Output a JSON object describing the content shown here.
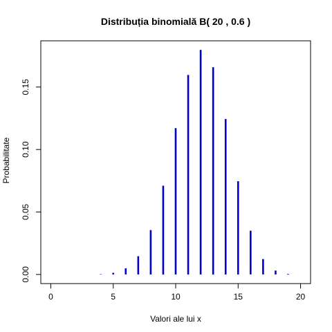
{
  "chart_data": {
    "type": "bar",
    "title": "Distribuția binomială B( 20 , 0.6 )",
    "xlabel": "Valori ale lui x",
    "ylabel": "Probabilitate",
    "xlim": [
      -0.8,
      20.8
    ],
    "ylim": [
      -0.0073,
      0.187
    ],
    "x_ticks": [
      0,
      5,
      10,
      15,
      20
    ],
    "x_tick_labels": [
      "0",
      "5",
      "10",
      "15",
      "20"
    ],
    "y_ticks": [
      0.0,
      0.05,
      0.1,
      0.15
    ],
    "y_tick_labels": [
      "0.00",
      "0.05",
      "0.10",
      "0.15"
    ],
    "grid": false,
    "legend": "none",
    "bar_color": "#0000CD",
    "x": [
      0,
      1,
      2,
      3,
      4,
      5,
      6,
      7,
      8,
      9,
      10,
      11,
      12,
      13,
      14,
      15,
      16,
      17,
      18,
      19,
      20
    ],
    "values": [
      0.0,
      0.0,
      0.0,
      0.0,
      0.0003,
      0.0013,
      0.0049,
      0.0146,
      0.0355,
      0.071,
      0.1171,
      0.1597,
      0.1797,
      0.1659,
      0.1244,
      0.0746,
      0.035,
      0.0123,
      0.0031,
      0.0005,
      0.0
    ]
  }
}
